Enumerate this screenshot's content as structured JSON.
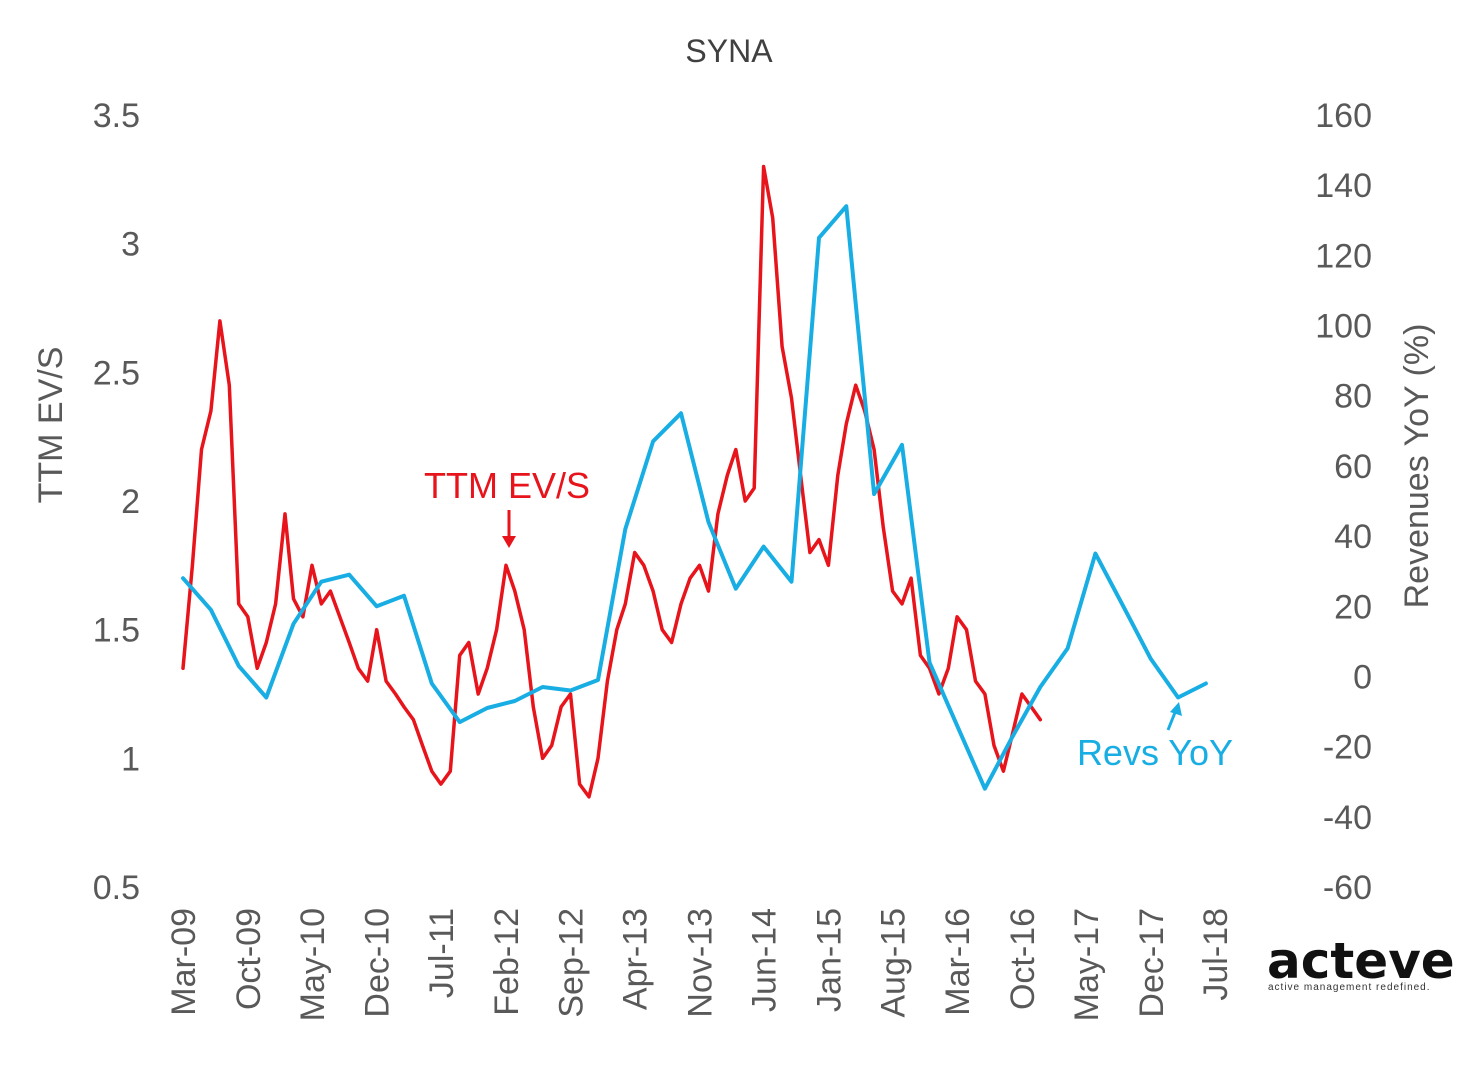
{
  "chart_data": {
    "type": "line",
    "title": "SYNA",
    "ylabel_left": "TTM EV/S",
    "ylabel_right": "Revenues YoY (%)",
    "ylim_left": [
      0.5,
      3.5
    ],
    "ylim_right": [
      -60,
      160
    ],
    "yticks_left": [
      "3.5",
      "3",
      "2.5",
      "2",
      "1.5",
      "1",
      "0.5"
    ],
    "yticks_right": [
      "160",
      "140",
      "120",
      "100",
      "80",
      "60",
      "40",
      "20",
      "0",
      "-20",
      "-40",
      "-60"
    ],
    "x_ticks": [
      "Mar-09",
      "Oct-09",
      "May-10",
      "Dec-10",
      "Jul-11",
      "Feb-12",
      "Sep-12",
      "Apr-13",
      "Nov-13",
      "Jun-14",
      "Jan-15",
      "Aug-15",
      "Mar-16",
      "Oct-16",
      "May-17",
      "Dec-17",
      "Jul-18"
    ],
    "series": [
      {
        "name": "TTM EV/S",
        "axis": "left",
        "color": "#e8141b",
        "x": [
          "2009-03",
          "2009-04",
          "2009-05",
          "2009-06",
          "2009-07",
          "2009-08",
          "2009-09",
          "2009-10",
          "2009-11",
          "2009-12",
          "2010-01",
          "2010-02",
          "2010-03",
          "2010-04",
          "2010-05",
          "2010-06",
          "2010-07",
          "2010-08",
          "2010-09",
          "2010-10",
          "2010-11",
          "2010-12",
          "2011-01",
          "2011-02",
          "2011-03",
          "2011-04",
          "2011-05",
          "2011-06",
          "2011-07",
          "2011-08",
          "2011-09",
          "2011-10",
          "2011-11",
          "2011-12",
          "2012-01",
          "2012-02",
          "2012-03",
          "2012-04",
          "2012-05",
          "2012-06",
          "2012-07",
          "2012-08",
          "2012-09",
          "2012-10",
          "2012-11",
          "2012-12",
          "2013-01",
          "2013-02",
          "2013-03",
          "2013-04",
          "2013-05",
          "2013-06",
          "2013-07",
          "2013-08",
          "2013-09",
          "2013-10",
          "2013-11",
          "2013-12",
          "2014-01",
          "2014-02",
          "2014-03",
          "2014-04",
          "2014-05",
          "2014-06",
          "2014-07",
          "2014-08",
          "2014-09",
          "2014-10",
          "2014-11",
          "2014-12",
          "2015-01",
          "2015-02",
          "2015-03",
          "2015-04",
          "2015-05",
          "2015-06",
          "2015-07",
          "2015-08",
          "2015-09",
          "2015-10",
          "2015-11",
          "2015-12",
          "2016-01",
          "2016-02",
          "2016-03",
          "2016-04",
          "2016-05",
          "2016-06",
          "2016-07",
          "2016-08",
          "2016-09",
          "2016-10",
          "2016-11",
          "2016-12"
        ],
        "values": [
          1.35,
          1.75,
          2.2,
          2.35,
          2.7,
          2.45,
          1.6,
          1.55,
          1.35,
          1.45,
          1.6,
          1.95,
          1.62,
          1.55,
          1.75,
          1.6,
          1.65,
          1.55,
          1.45,
          1.35,
          1.3,
          1.5,
          1.3,
          1.25,
          1.2,
          1.15,
          1.05,
          0.95,
          0.9,
          0.95,
          1.4,
          1.45,
          1.25,
          1.35,
          1.5,
          1.75,
          1.65,
          1.5,
          1.2,
          1.0,
          1.05,
          1.2,
          1.25,
          0.9,
          0.85,
          1.0,
          1.3,
          1.5,
          1.6,
          1.8,
          1.75,
          1.65,
          1.5,
          1.45,
          1.6,
          1.7,
          1.75,
          1.65,
          1.95,
          2.1,
          2.2,
          2.0,
          2.05,
          3.3,
          3.1,
          2.6,
          2.4,
          2.1,
          1.8,
          1.85,
          1.75,
          2.1,
          2.3,
          2.45,
          2.35,
          2.2,
          1.9,
          1.65,
          1.6,
          1.7,
          1.4,
          1.35,
          1.25,
          1.35,
          1.55,
          1.5,
          1.3,
          1.25,
          1.05,
          0.95,
          1.1,
          1.25,
          1.2,
          1.15
        ]
      },
      {
        "name": "Revs YoY",
        "axis": "right",
        "color": "#18aee3",
        "x": [
          "2009-03",
          "2009-06",
          "2009-09",
          "2009-12",
          "2010-03",
          "2010-06",
          "2010-09",
          "2010-12",
          "2011-03",
          "2011-06",
          "2011-09",
          "2011-12",
          "2012-03",
          "2012-06",
          "2012-09",
          "2012-12",
          "2013-03",
          "2013-06",
          "2013-09",
          "2013-12",
          "2014-03",
          "2014-06",
          "2014-09",
          "2014-12",
          "2015-03",
          "2015-06",
          "2015-09",
          "2015-12",
          "2016-03",
          "2016-06",
          "2016-09",
          "2016-12",
          "2017-03",
          "2017-06",
          "2017-09",
          "2017-12",
          "2018-03",
          "2018-06"
        ],
        "values": [
          28,
          19,
          3,
          -6,
          15,
          27,
          29,
          20,
          23,
          -2,
          -13,
          -9,
          -7,
          -3,
          -4,
          -1,
          42,
          67,
          75,
          44,
          25,
          37,
          27,
          125,
          134,
          52,
          66,
          4,
          -14,
          -32,
          -17,
          -3,
          8,
          35,
          20,
          5,
          -6,
          -2
        ]
      }
    ],
    "annotations": [
      "TTM EV/S",
      "Revs YoY"
    ],
    "grid": false,
    "legend": "none"
  },
  "logo": {
    "text": "acteve",
    "tagline": "active  management redefined."
  }
}
